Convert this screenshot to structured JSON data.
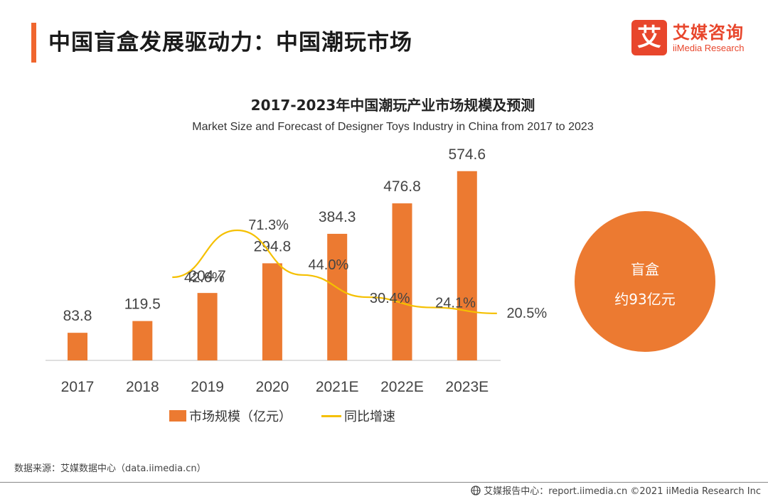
{
  "header": {
    "title": "中国盲盒发展驱动力：中国潮玩市场",
    "logo_cn": "艾媒咨询",
    "logo_en": "iiMedia Research",
    "logo_mark": "艾"
  },
  "colors": {
    "accent": "#f0662e",
    "bar": "#ec7a31",
    "line": "#f5c000",
    "logo": "#e8462c"
  },
  "callout": {
    "line1": "盲盒",
    "line2": "约93亿元"
  },
  "source": "数据来源：艾媒数据中心（data.iimedia.cn）",
  "footer": "艾媒报告中心：report.iimedia.cn ©2021 iiMedia Research Inc",
  "chart_data": {
    "type": "bar",
    "title": "2017-2023年中国潮玩产业市场规模及预测",
    "subtitle": "Market Size and Forecast of Designer Toys Industry in China from 2017 to 2023",
    "categories": [
      "2017",
      "2018",
      "2019",
      "2020",
      "2021E",
      "2022E",
      "2023E"
    ],
    "series": [
      {
        "name": "市场规模（亿元）",
        "type": "bar",
        "values": [
          83.8,
          119.5,
          204.7,
          294.8,
          384.3,
          476.8,
          574.6
        ],
        "labels": [
          "83.8",
          "119.5",
          "204.7",
          "294.8",
          "384.3",
          "476.8",
          "574.6"
        ]
      },
      {
        "name": "同比增速",
        "type": "line",
        "values": [
          null,
          42.6,
          71.3,
          44.0,
          30.4,
          24.1,
          20.5
        ],
        "labels": [
          "",
          "42.6%",
          "71.3%",
          "44.0%",
          "30.4%",
          "24.1%",
          "20.5%"
        ]
      }
    ],
    "ylim": [
      0,
      600
    ],
    "y2lim": [
      0,
      100
    ],
    "legend_position": "bottom",
    "grid": false
  }
}
